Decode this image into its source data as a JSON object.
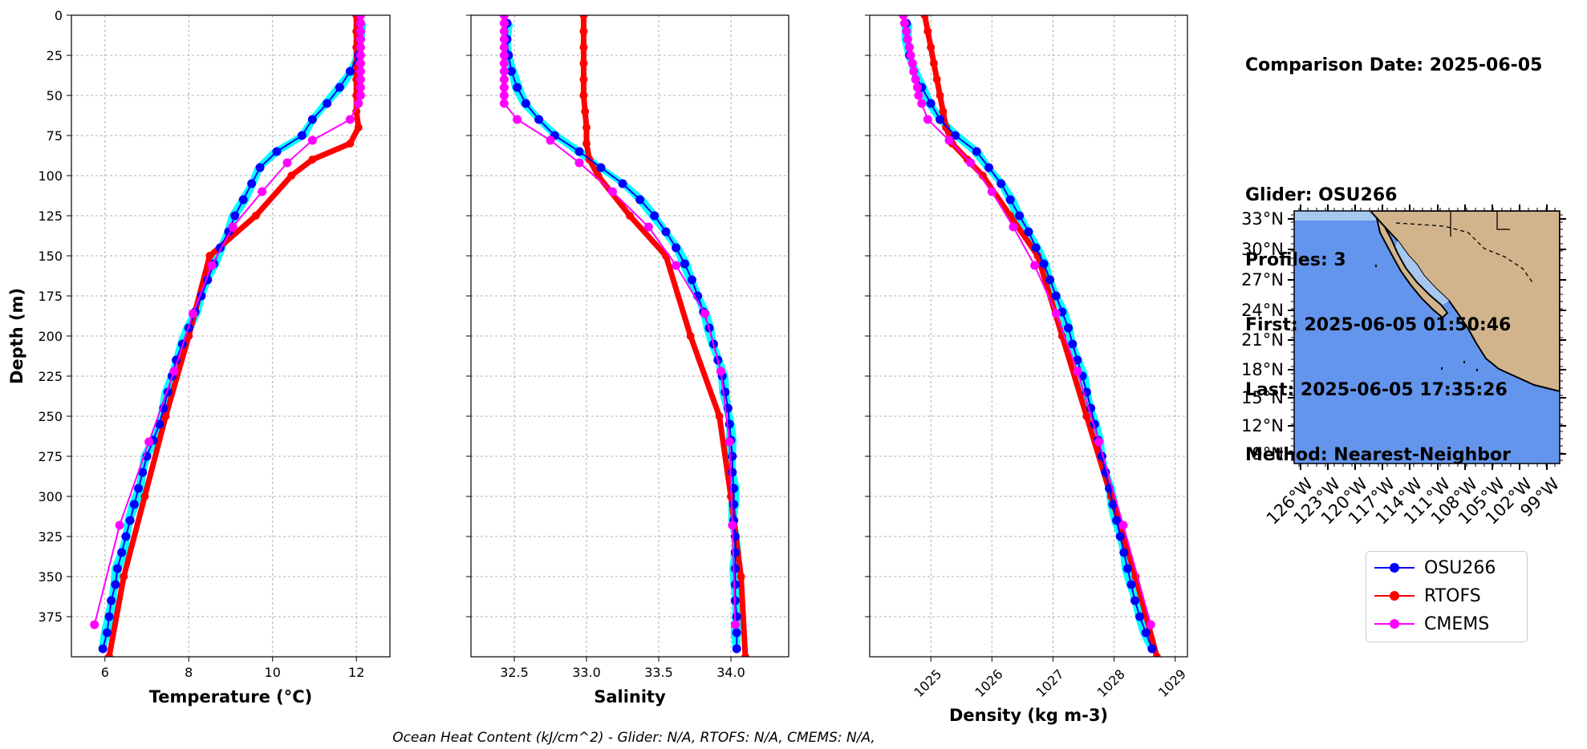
{
  "info": {
    "comparison_date": "Comparison Date: 2025-06-05",
    "glider": "Glider: OSU266",
    "profiles": "Profiles: 3",
    "first": "First: 2025-06-05 01:50:46",
    "last": "Last: 2025-06-05 17:35:26",
    "method": "Method: Nearest-Neighbor"
  },
  "footnote": "Ocean Heat Content (kJ/cm^2) - Glider: N/A,  RTOFS: N/A,  CMEMS: N/A,",
  "legend": [
    {
      "name": "OSU266",
      "color": "#0000ff"
    },
    {
      "name": "RTOFS",
      "color": "#ff0000"
    },
    {
      "name": "CMEMS",
      "color": "#ff00ff"
    }
  ],
  "colors": {
    "glider_profiles": "#00ffff",
    "ocean": "#6495ed",
    "land": "#d2b48c",
    "inland_water": "#a6c8ee"
  },
  "chart_data": [
    {
      "type": "line",
      "xlabel": "Temperature (°C)",
      "ylabel": "Depth (m)",
      "xlim": [
        5.2,
        12.8
      ],
      "ylim": [
        400,
        0
      ],
      "xticks": [
        6,
        8,
        10,
        12
      ],
      "yticks": [
        0,
        25,
        50,
        75,
        100,
        125,
        150,
        175,
        200,
        225,
        250,
        275,
        300,
        325,
        350,
        375
      ],
      "grid": true,
      "series": [
        {
          "name": "OSU266",
          "depth": [
            5,
            15,
            25,
            35,
            45,
            55,
            65,
            75,
            85,
            95,
            105,
            115,
            125,
            135,
            145,
            155,
            165,
            175,
            185,
            195,
            205,
            215,
            225,
            235,
            245,
            255,
            265,
            275,
            285,
            295,
            305,
            315,
            325,
            335,
            345,
            355,
            365,
            375,
            385,
            395
          ],
          "values": [
            12.1,
            12.1,
            12.05,
            11.85,
            11.6,
            11.3,
            10.95,
            10.7,
            10.1,
            9.7,
            9.5,
            9.3,
            9.1,
            8.95,
            8.75,
            8.6,
            8.45,
            8.3,
            8.15,
            8.0,
            7.85,
            7.7,
            7.6,
            7.5,
            7.4,
            7.3,
            7.15,
            7.0,
            6.9,
            6.8,
            6.7,
            6.6,
            6.5,
            6.4,
            6.3,
            6.25,
            6.15,
            6.1,
            6.05,
            5.95
          ]
        },
        {
          "name": "RTOFS",
          "depth": [
            0,
            10,
            20,
            30,
            40,
            50,
            60,
            70,
            80,
            90,
            100,
            125,
            150,
            200,
            250,
            300,
            350,
            400
          ],
          "values": [
            12.0,
            12.0,
            12.0,
            12.0,
            12.0,
            12.0,
            12.0,
            12.05,
            11.85,
            10.95,
            10.45,
            9.6,
            8.5,
            8.0,
            7.45,
            6.95,
            6.45,
            6.1
          ]
        },
        {
          "name": "CMEMS",
          "depth": [
            0,
            5,
            10,
            15,
            20,
            25,
            30,
            35,
            40,
            45,
            50,
            55,
            65,
            78,
            92,
            110,
            132,
            156,
            186,
            222,
            266,
            318,
            380
          ],
          "values": [
            12.1,
            12.1,
            12.1,
            12.1,
            12.1,
            12.1,
            12.1,
            12.1,
            12.1,
            12.1,
            12.1,
            12.05,
            11.85,
            10.95,
            10.35,
            9.75,
            9.05,
            8.55,
            8.1,
            7.65,
            7.05,
            6.35,
            5.75
          ]
        }
      ]
    },
    {
      "type": "line",
      "xlabel": "Salinity",
      "xlim": [
        32.2,
        34.4
      ],
      "ylim": [
        400,
        0
      ],
      "xticks": [
        32.5,
        33.0,
        33.5,
        34.0
      ],
      "grid": true,
      "series": [
        {
          "name": "OSU266",
          "depth": [
            5,
            15,
            25,
            35,
            45,
            55,
            65,
            75,
            85,
            95,
            105,
            115,
            125,
            135,
            145,
            155,
            165,
            175,
            185,
            195,
            205,
            215,
            225,
            235,
            245,
            255,
            265,
            275,
            285,
            295,
            305,
            315,
            325,
            335,
            345,
            355,
            365,
            375,
            385,
            395
          ],
          "values": [
            32.45,
            32.45,
            32.46,
            32.48,
            32.52,
            32.58,
            32.67,
            32.78,
            32.95,
            33.1,
            33.25,
            33.37,
            33.47,
            33.55,
            33.62,
            33.68,
            33.73,
            33.77,
            33.81,
            33.85,
            33.88,
            33.91,
            33.94,
            33.96,
            33.98,
            33.99,
            34.0,
            34.01,
            34.01,
            34.02,
            34.02,
            34.02,
            34.03,
            34.03,
            34.03,
            34.03,
            34.03,
            34.04,
            34.04,
            34.04
          ]
        },
        {
          "name": "RTOFS",
          "depth": [
            0,
            10,
            20,
            30,
            40,
            50,
            60,
            70,
            80,
            90,
            100,
            125,
            150,
            200,
            250,
            300,
            350,
            400
          ],
          "values": [
            32.98,
            32.98,
            32.98,
            32.98,
            32.98,
            32.98,
            32.99,
            33.0,
            33.0,
            33.02,
            33.08,
            33.3,
            33.55,
            33.72,
            33.92,
            34.0,
            34.07,
            34.1
          ]
        },
        {
          "name": "CMEMS",
          "depth": [
            0,
            5,
            10,
            15,
            20,
            25,
            30,
            35,
            40,
            45,
            50,
            55,
            65,
            78,
            92,
            110,
            132,
            156,
            186,
            222,
            266,
            318,
            380
          ],
          "values": [
            32.43,
            32.43,
            32.43,
            32.43,
            32.43,
            32.43,
            32.43,
            32.43,
            32.43,
            32.43,
            32.43,
            32.43,
            32.52,
            32.75,
            32.95,
            33.18,
            33.43,
            33.62,
            33.82,
            33.93,
            33.99,
            34.01,
            34.03
          ]
        }
      ]
    },
    {
      "type": "line",
      "xlabel": "Density (kg m-3)",
      "xlim": [
        1024.0,
        1029.2
      ],
      "ylim": [
        400,
        0
      ],
      "xticks": [
        1025,
        1026,
        1027,
        1028,
        1029
      ],
      "grid": true,
      "series": [
        {
          "name": "OSU266",
          "depth": [
            5,
            15,
            25,
            35,
            45,
            55,
            65,
            75,
            85,
            95,
            105,
            115,
            125,
            135,
            145,
            155,
            165,
            175,
            185,
            195,
            205,
            215,
            225,
            235,
            245,
            255,
            265,
            275,
            285,
            295,
            305,
            315,
            325,
            335,
            345,
            355,
            365,
            375,
            385,
            395
          ],
          "values": [
            1024.6,
            1024.62,
            1024.65,
            1024.72,
            1024.85,
            1025.0,
            1025.15,
            1025.4,
            1025.75,
            1025.95,
            1026.15,
            1026.3,
            1026.45,
            1026.6,
            1026.72,
            1026.85,
            1026.95,
            1027.05,
            1027.15,
            1027.25,
            1027.32,
            1027.4,
            1027.48,
            1027.55,
            1027.62,
            1027.68,
            1027.74,
            1027.8,
            1027.86,
            1027.92,
            1027.98,
            1028.04,
            1028.1,
            1028.16,
            1028.22,
            1028.28,
            1028.34,
            1028.42,
            1028.52,
            1028.62
          ]
        },
        {
          "name": "RTOFS",
          "depth": [
            0,
            10,
            20,
            30,
            40,
            50,
            60,
            70,
            80,
            90,
            100,
            125,
            150,
            200,
            250,
            300,
            350,
            400
          ],
          "values": [
            1024.9,
            1024.95,
            1025.0,
            1025.05,
            1025.1,
            1025.15,
            1025.2,
            1025.25,
            1025.35,
            1025.6,
            1025.85,
            1026.3,
            1026.75,
            1027.15,
            1027.55,
            1027.95,
            1028.35,
            1028.7
          ]
        },
        {
          "name": "CMEMS",
          "depth": [
            0,
            5,
            10,
            15,
            20,
            25,
            30,
            35,
            40,
            45,
            50,
            55,
            65,
            78,
            92,
            110,
            132,
            156,
            186,
            222,
            266,
            318,
            380
          ],
          "values": [
            1024.55,
            1024.57,
            1024.6,
            1024.62,
            1024.65,
            1024.67,
            1024.7,
            1024.72,
            1024.75,
            1024.78,
            1024.8,
            1024.85,
            1024.95,
            1025.3,
            1025.65,
            1026.0,
            1026.35,
            1026.7,
            1027.05,
            1027.4,
            1027.75,
            1028.15,
            1028.6
          ]
        }
      ]
    }
  ],
  "map": {
    "lat_labels": [
      "33°N",
      "30°N",
      "27°N",
      "24°N",
      "21°N",
      "18°N",
      "15°N",
      "12°N",
      "9°N"
    ],
    "lon_labels": [
      "126°W",
      "123°W",
      "120°W",
      "117°W",
      "114°W",
      "111°W",
      "108°W",
      "105°W",
      "102°W",
      "99°W"
    ]
  }
}
